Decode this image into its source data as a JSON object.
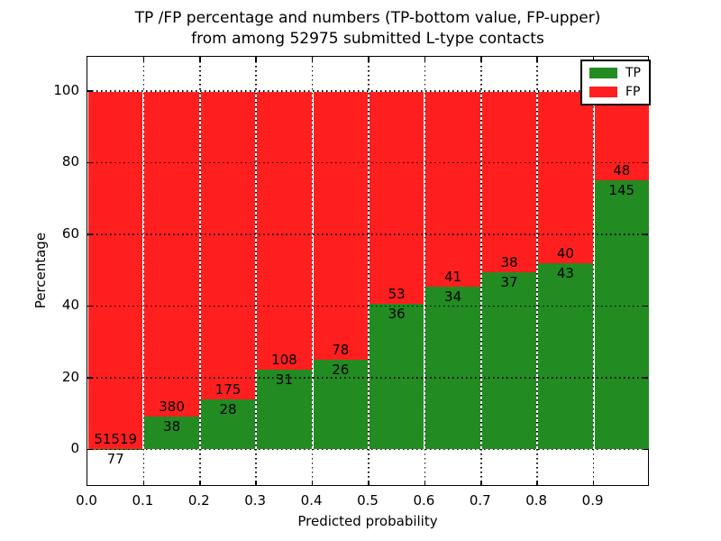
{
  "title": {
    "line1": "TP /FP percentage and numbers (TP-bottom value, FP-upper)",
    "line2": "from among 52975 submitted L-type contacts"
  },
  "chart_data": {
    "type": "bar",
    "subtype": "stacked-percentage-histogram",
    "title": "TP /FP percentage and numbers (TP-bottom value, FP-upper) from among 52975 submitted L-type contacts",
    "xlabel": "Predicted probability",
    "ylabel": "Percentage",
    "total_contacts": 52975,
    "bin_width": 0.1,
    "bin_starts": [
      0.0,
      0.1,
      0.2,
      0.3,
      0.4,
      0.5,
      0.6,
      0.7,
      0.8,
      0.9
    ],
    "categories": [
      "0.0-0.1",
      "0.1-0.2",
      "0.2-0.3",
      "0.3-0.4",
      "0.4-0.5",
      "0.5-0.6",
      "0.6-0.7",
      "0.7-0.8",
      "0.8-0.9",
      "0.9-1.0"
    ],
    "series": [
      {
        "name": "TP",
        "color": "#228b22",
        "counts": [
          77,
          38,
          28,
          31,
          26,
          36,
          34,
          37,
          43,
          145
        ]
      },
      {
        "name": "FP",
        "color": "#ff1f1f",
        "counts": [
          51519,
          380,
          175,
          108,
          78,
          53,
          41,
          38,
          40,
          48
        ]
      }
    ],
    "tp_percent_est": [
      0.15,
      9.09,
      13.79,
      22.3,
      25.0,
      40.45,
      45.33,
      49.33,
      51.81,
      75.13
    ],
    "x_tick_labels": [
      "0.0",
      "0.1",
      "0.2",
      "0.3",
      "0.4",
      "0.5",
      "0.6",
      "0.7",
      "0.8",
      "0.9"
    ],
    "y_tick_values": [
      0,
      20,
      40,
      60,
      80,
      100
    ],
    "xlim": [
      0.0,
      1.0
    ],
    "ylim": [
      -10.5,
      109.5
    ],
    "grid": "dotted-black",
    "legend": {
      "position": "upper-right",
      "entries": [
        {
          "label": "TP"
        },
        {
          "label": "FP"
        }
      ]
    }
  },
  "colors": {
    "tp": "#228b22",
    "fp": "#ff1f1f",
    "background": "#ffffff",
    "frame": "#000000",
    "text": "#000000"
  }
}
